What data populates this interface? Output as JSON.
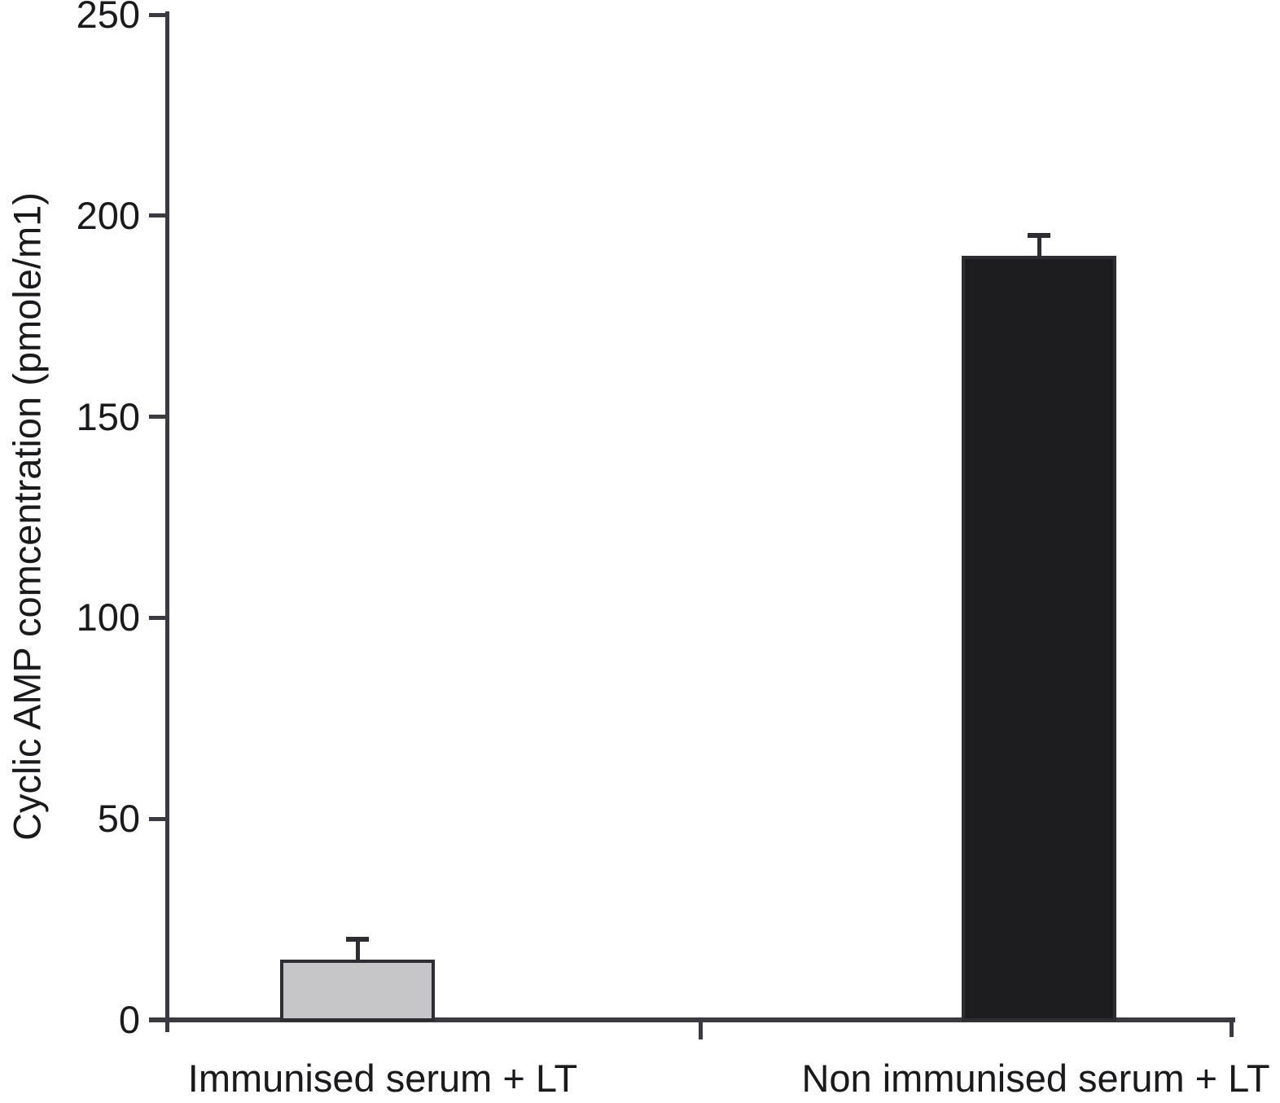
{
  "chart_data": {
    "type": "bar",
    "title": "",
    "xlabel": "",
    "ylabel": "Cyclic AMP comcentration (pmole/m1)",
    "ylim": [
      0,
      250
    ],
    "yticks": [
      0,
      50,
      100,
      150,
      200,
      250
    ],
    "categories": [
      "Immunised serum + LT",
      "Non immunised serum + LT"
    ],
    "values": [
      15,
      190
    ],
    "errors": [
      5,
      5
    ],
    "bar_colors": [
      "#c6c6c9",
      "#1d1d1f"
    ],
    "bar_edge_color": "#2d2d32",
    "axis_color": "#3a3a40",
    "grid": false,
    "legend": null
  }
}
